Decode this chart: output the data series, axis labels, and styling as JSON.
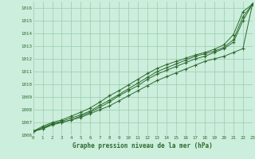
{
  "x": [
    0,
    1,
    2,
    3,
    4,
    5,
    6,
    7,
    8,
    9,
    10,
    11,
    12,
    13,
    14,
    15,
    16,
    17,
    18,
    19,
    20,
    21,
    22,
    23
  ],
  "series1": [
    1006.3,
    1006.5,
    1006.8,
    1007.0,
    1007.2,
    1007.4,
    1007.7,
    1008.0,
    1008.3,
    1008.7,
    1009.1,
    1009.5,
    1009.9,
    1010.3,
    1010.6,
    1010.9,
    1011.2,
    1011.5,
    1011.8,
    1012.0,
    1012.2,
    1012.5,
    1012.8,
    1016.3
  ],
  "series2": [
    1006.3,
    1006.5,
    1006.9,
    1007.0,
    1007.2,
    1007.5,
    1007.8,
    1008.2,
    1008.6,
    1009.1,
    1009.5,
    1009.9,
    1010.4,
    1010.8,
    1011.1,
    1011.4,
    1011.7,
    1012.0,
    1012.2,
    1012.5,
    1012.8,
    1013.3,
    1015.0,
    1016.3
  ],
  "series3": [
    1006.3,
    1006.6,
    1006.9,
    1007.1,
    1007.35,
    1007.6,
    1007.9,
    1008.35,
    1008.75,
    1009.2,
    1009.65,
    1010.1,
    1010.55,
    1011.0,
    1011.3,
    1011.6,
    1011.9,
    1012.2,
    1012.4,
    1012.6,
    1012.9,
    1013.5,
    1015.3,
    1016.3
  ],
  "series4": [
    1006.3,
    1006.7,
    1007.0,
    1007.2,
    1007.5,
    1007.8,
    1008.15,
    1008.6,
    1009.1,
    1009.5,
    1009.95,
    1010.4,
    1010.85,
    1011.25,
    1011.55,
    1011.8,
    1012.05,
    1012.3,
    1012.5,
    1012.75,
    1013.1,
    1013.9,
    1015.7,
    1016.3
  ],
  "line_color": "#2d6a2d",
  "bg_color": "#cceedd",
  "grid_color": "#99ccaa",
  "xlabel": "Graphe pression niveau de la mer (hPa)",
  "ylim": [
    1006,
    1016.5
  ],
  "xlim": [
    0,
    23
  ],
  "yticks": [
    1006,
    1007,
    1008,
    1009,
    1010,
    1011,
    1012,
    1013,
    1014,
    1015,
    1016
  ],
  "xticks": [
    0,
    1,
    2,
    3,
    4,
    5,
    6,
    7,
    8,
    9,
    10,
    11,
    12,
    13,
    14,
    15,
    16,
    17,
    18,
    19,
    20,
    21,
    22,
    23
  ],
  "marker": "+",
  "marker_size": 3.5,
  "linewidth": 0.7
}
